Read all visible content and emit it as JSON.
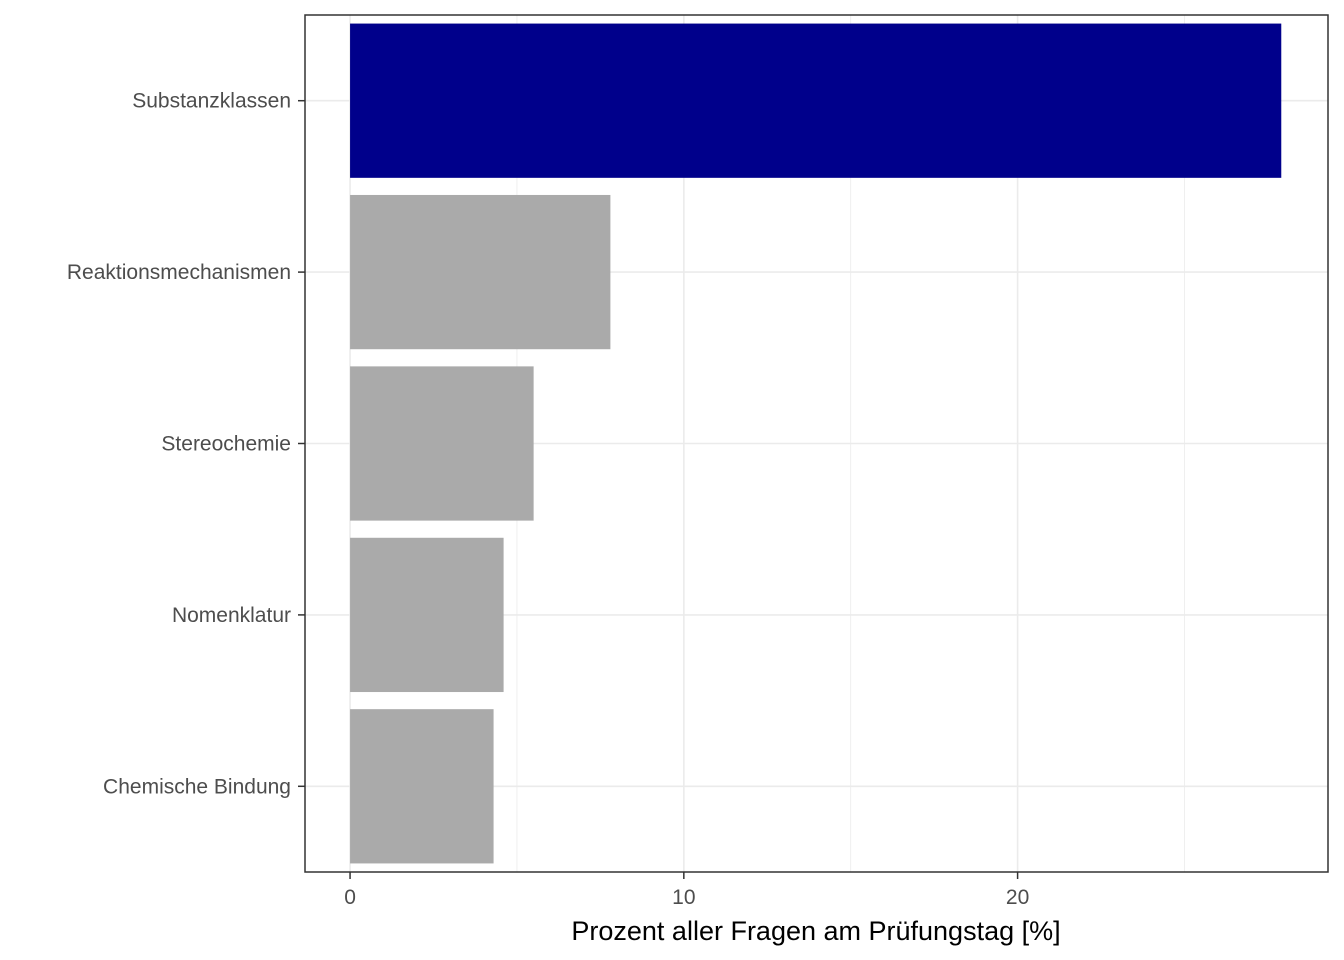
{
  "chart_data": {
    "type": "bar",
    "orientation": "horizontal",
    "categories": [
      "Substanzklassen",
      "Reaktionsmechanismen",
      "Stereochemie",
      "Nomenklatur",
      "Chemische Bindung"
    ],
    "values": [
      27.9,
      7.8,
      5.5,
      4.6,
      4.3
    ],
    "xlabel": "Prozent aller Fragen am Prüfungstag [%]",
    "ylabel": "",
    "xlim": [
      -1.35,
      29.3
    ],
    "xticks": [
      0,
      10,
      20
    ],
    "xtick_labels": [
      "0",
      "10",
      "20"
    ],
    "grid": true,
    "colors": {
      "highlight": "#00008b",
      "default": "#aaaaaa",
      "grid": "#ebebeb",
      "panel_border": "#333333"
    },
    "highlight_index": 0
  }
}
